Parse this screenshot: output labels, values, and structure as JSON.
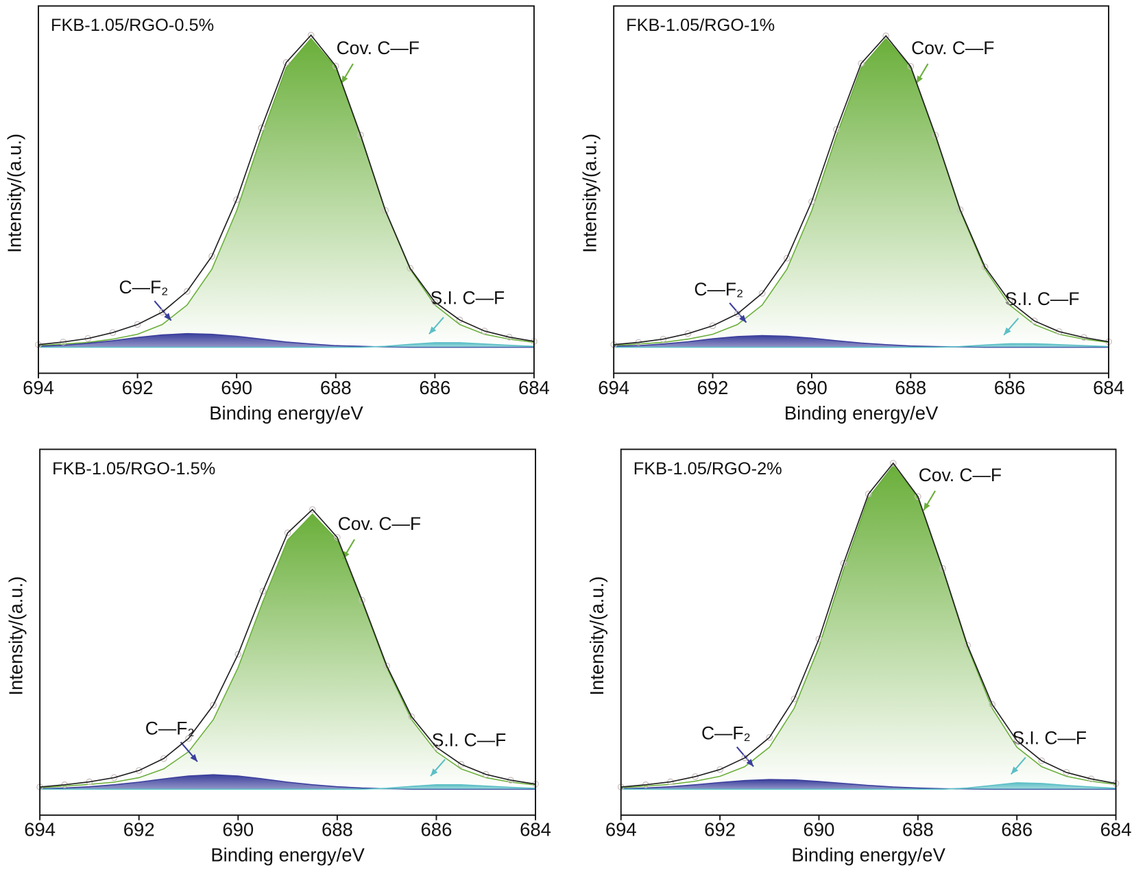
{
  "chart_data": [
    {
      "type": "area",
      "label": "FKB-1.05/RGO-0.5%",
      "xlabel": "Binding energy/eV",
      "ylabel": "Intensity/(a.u.)",
      "x": [
        694,
        693.5,
        693,
        692.5,
        692,
        691.5,
        691,
        690.5,
        690,
        689.5,
        689,
        688.5,
        688,
        687.5,
        687,
        686.5,
        686,
        685.5,
        685,
        684.5,
        684
      ],
      "xlim": [
        694,
        684
      ],
      "xticks": [
        694,
        692,
        690,
        688,
        686,
        684
      ],
      "ylim": [
        -8,
        105
      ],
      "series": [
        {
          "name": "Cov. C—F",
          "color": "#6aaf3a",
          "values": [
            0.5,
            1,
            1.5,
            2.5,
            4,
            7,
            13,
            24,
            42,
            65,
            86,
            95,
            86,
            65,
            42,
            24,
            13,
            7,
            4,
            2.5,
            1.5
          ]
        },
        {
          "name": "C—F₂",
          "color": "#3b3f9c",
          "values": [
            0.3,
            0.6,
            1.2,
            2,
            3,
            3.8,
            4.2,
            4,
            3.4,
            2.5,
            1.6,
            1,
            0.5,
            0.3,
            0.1,
            0,
            0,
            0,
            0,
            0,
            0
          ]
        },
        {
          "name": "S.I. C—F",
          "color": "#5cbfc6",
          "values": [
            0,
            0,
            0,
            0,
            0,
            0,
            0,
            0,
            0,
            0,
            0,
            0,
            0,
            0,
            0.3,
            0.9,
            1.4,
            1.4,
            1,
            0.6,
            0.3
          ]
        },
        {
          "color": "#cbbfbf",
          "line_color": "#222222",
          "values": [
            0.8,
            1.6,
            2.7,
            4.5,
            7,
            10.8,
            17.2,
            28,
            45.4,
            67.5,
            87.6,
            96,
            86.5,
            65.3,
            42.1,
            24.3,
            13.9,
            8.4,
            5,
            3.1,
            1.8
          ]
        }
      ]
    },
    {
      "type": "area",
      "label": "FKB-1.05/RGO-1%",
      "xlabel": "Binding energy/eV",
      "ylabel": "Intensity/(a.u.)",
      "x": [
        694,
        693.5,
        693,
        692.5,
        692,
        691.5,
        691,
        690.5,
        690,
        689.5,
        689,
        688.5,
        688,
        687.5,
        687,
        686.5,
        686,
        685.5,
        685,
        684.5,
        684
      ],
      "xlim": [
        694,
        684
      ],
      "xticks": [
        694,
        692,
        690,
        688,
        686,
        684
      ],
      "ylim": [
        -8,
        105
      ],
      "series": [
        {
          "name": "Cov. C—F",
          "color": "#6aaf3a",
          "values": [
            0.5,
            1,
            1.5,
            2.5,
            4,
            7,
            13,
            24,
            42,
            65,
            86,
            95,
            86,
            65,
            42,
            24,
            13,
            7,
            4,
            2.5,
            1.5
          ]
        },
        {
          "name": "C—F₂",
          "color": "#3b3f9c",
          "values": [
            0.3,
            0.5,
            1,
            1.7,
            2.6,
            3.3,
            3.6,
            3.4,
            2.8,
            2,
            1.3,
            0.8,
            0.4,
            0.2,
            0.1,
            0,
            0,
            0,
            0,
            0,
            0
          ]
        },
        {
          "name": "S.I. C—F",
          "color": "#5cbfc6",
          "values": [
            0,
            0,
            0,
            0,
            0,
            0,
            0,
            0,
            0,
            0,
            0,
            0,
            0,
            0,
            0.2,
            0.7,
            1.1,
            1.1,
            0.8,
            0.5,
            0.2
          ]
        },
        {
          "color": "#cbbfbf",
          "line_color": "#222222",
          "values": [
            0.8,
            1.5,
            2.5,
            4.2,
            6.6,
            10.3,
            16.6,
            27.4,
            44.8,
            67,
            87.3,
            95.8,
            86.4,
            65.2,
            42.3,
            24.7,
            14.1,
            8.1,
            4.8,
            3,
            1.7
          ]
        }
      ]
    },
    {
      "type": "area",
      "label": "FKB-1.05/RGO-1.5%",
      "xlabel": "Binding energy/eV",
      "ylabel": "Intensity/(a.u.)",
      "x": [
        694,
        693.5,
        693,
        692.5,
        692,
        691.5,
        691,
        690.5,
        690,
        689.5,
        689,
        688.5,
        688,
        687.5,
        687,
        686.5,
        686,
        685.5,
        685,
        684.5,
        684
      ],
      "xlim": [
        694,
        684
      ],
      "xticks": [
        694,
        692,
        690,
        688,
        686,
        684
      ],
      "ylim": [
        -8,
        105
      ],
      "series": [
        {
          "name": "Cov. C—F",
          "color": "#6aaf3a",
          "values": [
            0.5,
            1,
            1.5,
            2.2,
            3.6,
            6.3,
            11.6,
            21.5,
            37.6,
            58,
            77,
            85,
            77,
            58,
            37.6,
            21.5,
            11.6,
            6.3,
            3.6,
            2.2,
            1.3
          ]
        },
        {
          "name": "C—F₂",
          "color": "#3b3f9c",
          "values": [
            0.2,
            0.4,
            0.8,
            1.4,
            2.2,
            3.2,
            4.1,
            4.5,
            4.1,
            3.2,
            2.2,
            1.4,
            0.8,
            0.4,
            0.2,
            0,
            0,
            0,
            0,
            0,
            0
          ]
        },
        {
          "name": "S.I. C—F",
          "color": "#5cbfc6",
          "values": [
            0,
            0,
            0,
            0,
            0,
            0,
            0,
            0,
            0,
            0,
            0,
            0,
            0,
            0,
            0.3,
            0.9,
            1.4,
            1.4,
            1,
            0.6,
            0.3
          ]
        },
        {
          "color": "#cbbfbf",
          "line_color": "#222222",
          "values": [
            0.7,
            1.4,
            2.3,
            3.6,
            5.8,
            9.5,
            15.7,
            26,
            41.7,
            61.2,
            79.2,
            86.4,
            77.8,
            58.4,
            38.1,
            22.4,
            13,
            7.7,
            4.6,
            2.8,
            1.6
          ]
        }
      ]
    },
    {
      "type": "area",
      "label": "FKB-1.05/RGO-2%",
      "xlabel": "Binding energy/eV",
      "ylabel": "Intensity/(a.u.)",
      "x": [
        694,
        693.5,
        693,
        692.5,
        692,
        691.5,
        691,
        690.5,
        690,
        689.5,
        689,
        688.5,
        688,
        687.5,
        687,
        686.5,
        686,
        685.5,
        685,
        684.5,
        684
      ],
      "xlim": [
        694,
        684
      ],
      "xticks": [
        694,
        692,
        690,
        688,
        686,
        684
      ],
      "ylim": [
        -8,
        105
      ],
      "series": [
        {
          "name": "Cov. C—F",
          "color": "#6aaf3a",
          "values": [
            0.5,
            1,
            1.5,
            2.5,
            4,
            7,
            13,
            25,
            44,
            68,
            90,
            100,
            90,
            68,
            44,
            25,
            13,
            7,
            4,
            2.5,
            1.5
          ]
        },
        {
          "name": "C—F₂",
          "color": "#3b3f9c",
          "values": [
            0.2,
            0.4,
            0.8,
            1.4,
            2.1,
            2.7,
            3,
            2.9,
            2.4,
            1.8,
            1.2,
            0.7,
            0.4,
            0.2,
            0.1,
            0,
            0,
            0,
            0,
            0,
            0
          ]
        },
        {
          "name": "S.I. C—F",
          "color": "#5cbfc6",
          "values": [
            0,
            0,
            0,
            0,
            0,
            0,
            0,
            0,
            0,
            0,
            0,
            0,
            0,
            0,
            0.4,
            1.2,
            2,
            1.8,
            1.2,
            0.7,
            0.3
          ]
        },
        {
          "color": "#cbbfbf",
          "line_color": "#222222",
          "values": [
            0.7,
            1.4,
            2.3,
            3.9,
            6.1,
            9.7,
            16,
            27.9,
            46.4,
            69.8,
            91.2,
            100.7,
            90.4,
            68.2,
            44.5,
            26.2,
            15,
            8.8,
            5.2,
            3.2,
            1.8
          ]
        }
      ]
    }
  ]
}
